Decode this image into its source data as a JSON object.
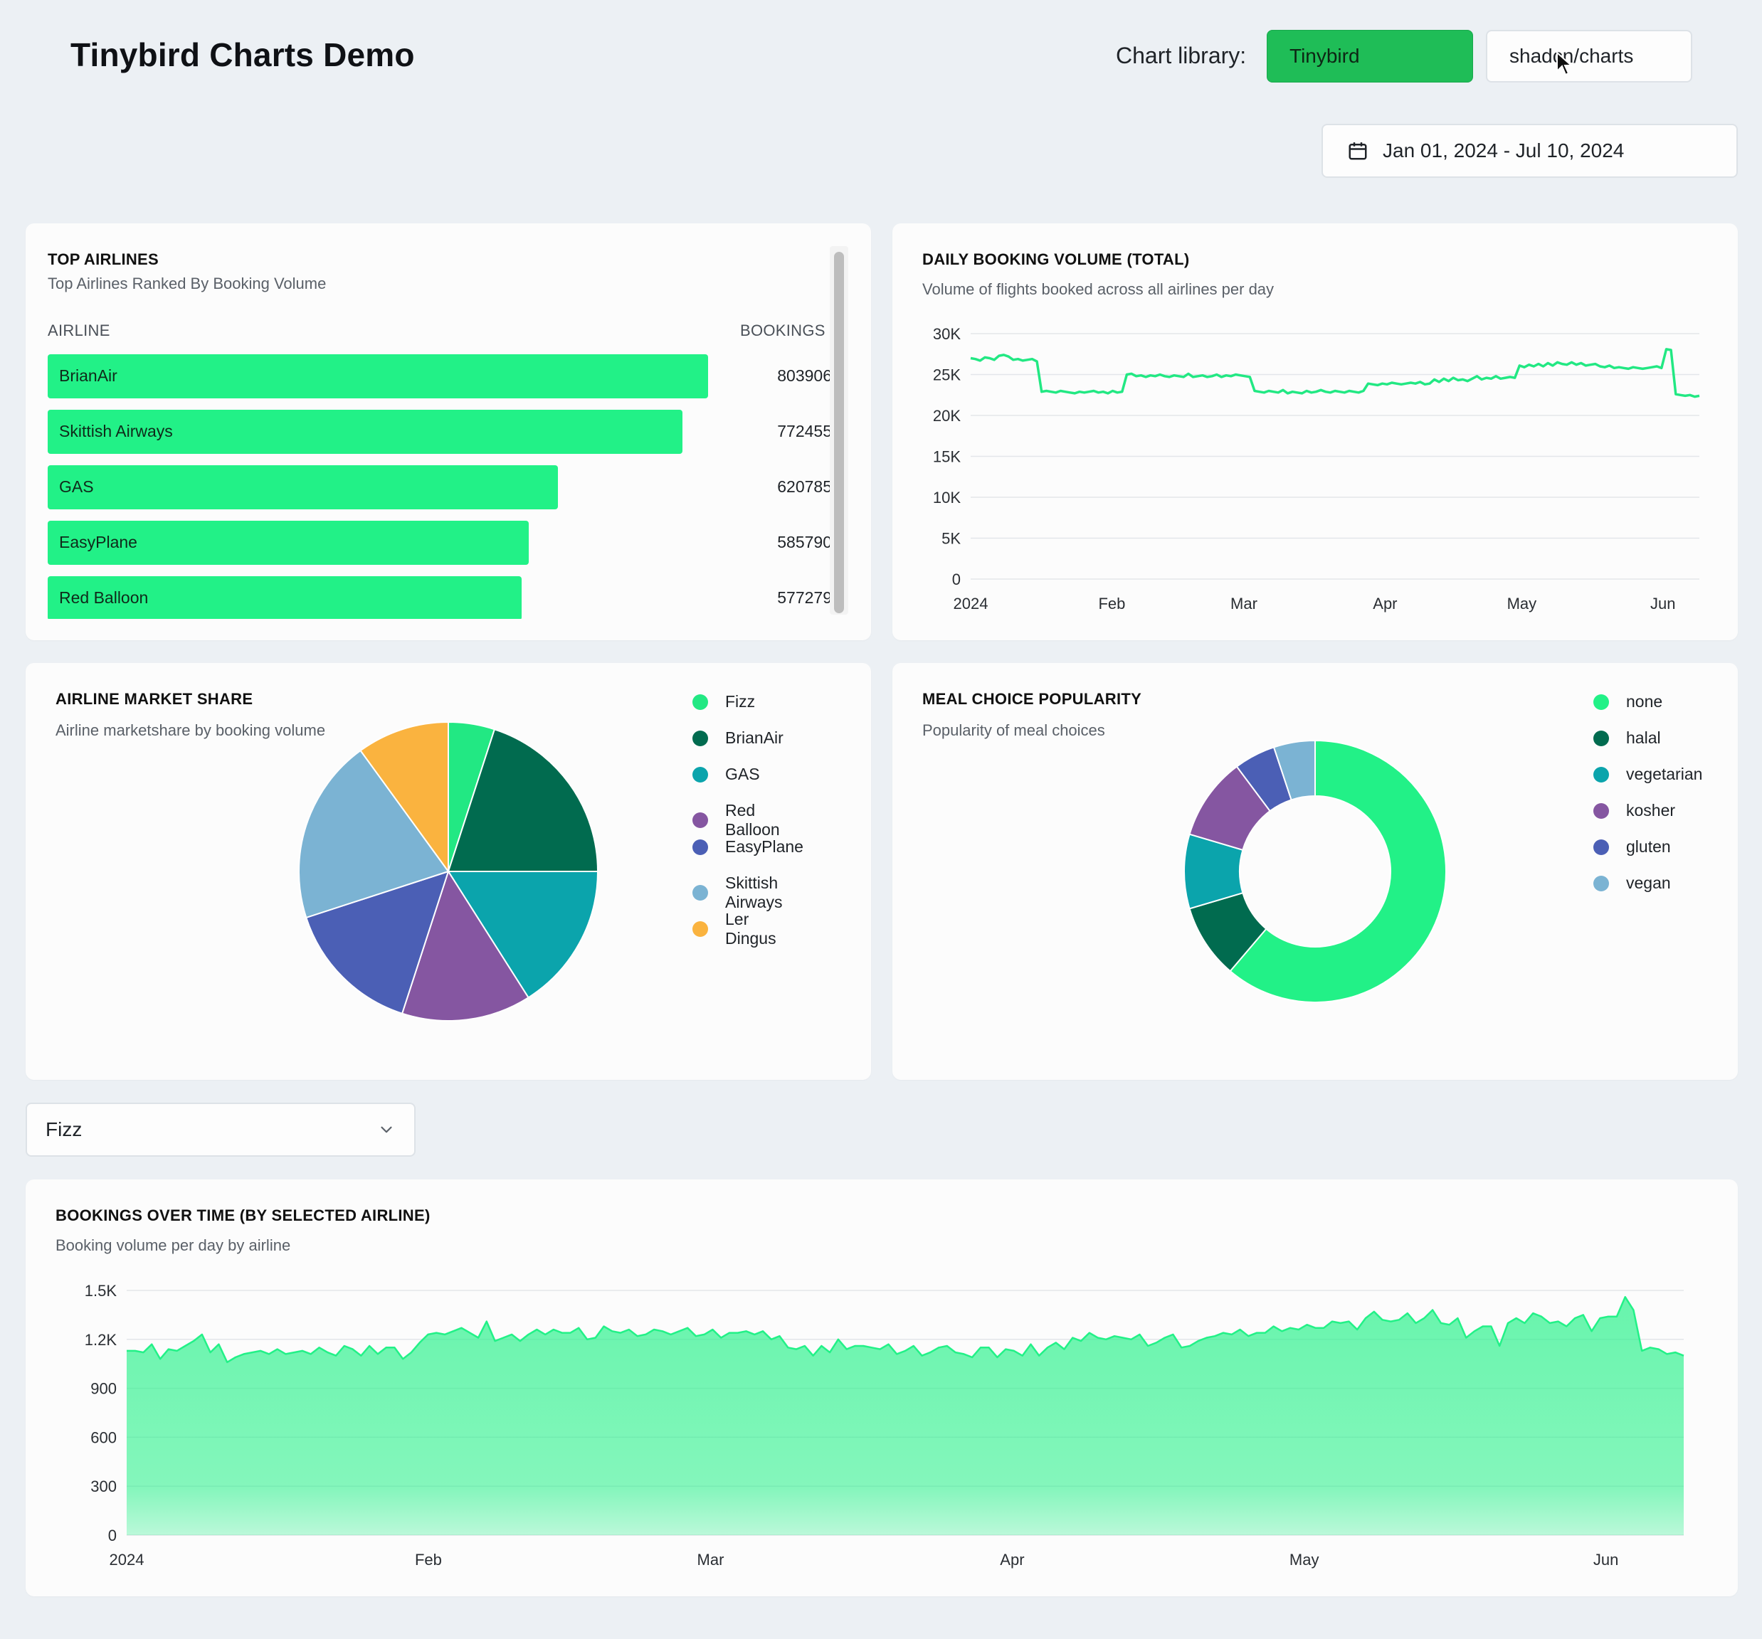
{
  "header": {
    "title": "Tinybird Charts Demo",
    "library_label": "Chart library:",
    "library_options": [
      "Tinybird",
      "shadcn/charts"
    ],
    "date_range": "Jan 01, 2024 - Jul 10, 2024"
  },
  "top_airlines": {
    "title": "TOP AIRLINES",
    "subtitle": "Top Airlines Ranked By Booking Volume",
    "col_airline": "AIRLINE",
    "col_bookings": "BOOKINGS"
  },
  "daily_booking": {
    "title": "DAILY BOOKING VOLUME (TOTAL)",
    "subtitle": "Volume of flights booked across all airlines per day"
  },
  "market_share": {
    "title": "AIRLINE MARKET SHARE",
    "subtitle": "Airline marketshare by booking volume"
  },
  "meal_choice": {
    "title": "MEAL CHOICE POPULARITY",
    "subtitle": "Popularity of meal choices"
  },
  "airline_select": {
    "value": "Fizz"
  },
  "bookings_over_time": {
    "title": "BOOKINGS OVER TIME (BY SELECTED AIRLINE)",
    "subtitle": "Booking volume per day by airline"
  },
  "colors": {
    "accent": "#22f187",
    "button_active": "#1fbd57",
    "background": "#ecf0f4"
  },
  "chart_data": [
    {
      "id": "top_airlines",
      "type": "bar",
      "orientation": "horizontal",
      "categories": [
        "BrianAir",
        "Skittish Airways",
        "GAS",
        "EasyPlane",
        "Red Balloon"
      ],
      "values": [
        803906,
        772455,
        620785,
        585790,
        577279
      ],
      "color": "#22f187"
    },
    {
      "id": "daily_booking",
      "type": "line",
      "xlabel": "",
      "ylabel": "",
      "ylim": [
        0,
        30000
      ],
      "yticks": [
        0,
        5000,
        10000,
        15000,
        20000,
        25000,
        30000
      ],
      "ytick_labels": [
        "0",
        "5K",
        "10K",
        "15K",
        "20K",
        "25K",
        "30K"
      ],
      "xtick_labels": [
        "2024",
        "Feb",
        "Mar",
        "Apr",
        "May",
        "Jun"
      ],
      "xtick_days": [
        0,
        31,
        60,
        91,
        121,
        152
      ],
      "x_day_range": [
        0,
        160
      ],
      "series": [
        {
          "name": "Total bookings",
          "color": "#22e883",
          "values": [
            27000,
            26900,
            26700,
            27100,
            27000,
            26800,
            27300,
            27400,
            27200,
            26800,
            26900,
            26700,
            26800,
            26900,
            26600,
            22900,
            23000,
            22900,
            22800,
            23000,
            22900,
            22800,
            22700,
            22900,
            22800,
            22900,
            23000,
            22800,
            22900,
            22700,
            23000,
            22800,
            22900,
            25000,
            25100,
            24800,
            24900,
            24700,
            24900,
            24800,
            25000,
            24800,
            24700,
            24900,
            24800,
            24700,
            25100,
            24700,
            24800,
            24900,
            24700,
            24800,
            25000,
            24700,
            24900,
            24800,
            25000,
            24900,
            24800,
            24700,
            23000,
            22900,
            22800,
            23000,
            22900,
            22800,
            23100,
            22700,
            22900,
            22800,
            22700,
            23000,
            22800,
            22900,
            23100,
            22900,
            22800,
            23000,
            22900,
            22800,
            23000,
            22900,
            22800,
            23000,
            23900,
            23800,
            23700,
            23900,
            23800,
            24000,
            23900,
            23800,
            23900,
            24000,
            23900,
            24100,
            23800,
            23900,
            24400,
            24100,
            24500,
            24200,
            24600,
            24300,
            24400,
            24200,
            24500,
            24800,
            24400,
            24600,
            24500,
            24800,
            24500,
            24600,
            24700,
            24600,
            26100,
            25900,
            26200,
            26000,
            26300,
            26000,
            26400,
            26100,
            26500,
            26300,
            26200,
            26500,
            26200,
            26400,
            26100,
            26200,
            26300,
            26000,
            25900,
            26100,
            25800,
            25900,
            25800,
            25700,
            25900,
            25800,
            25700,
            25800,
            25900,
            26000,
            25800,
            28100,
            28000,
            22600,
            22500,
            22400,
            22500,
            22300,
            22400
          ]
        }
      ]
    },
    {
      "id": "market_share",
      "type": "pie",
      "categories": [
        "Fizz",
        "BrianAir",
        "GAS",
        "Red Balloon",
        "EasyPlane",
        "Skittish Airways",
        "Ler Dingus"
      ],
      "values": [
        5,
        20,
        16,
        14,
        15,
        20,
        10
      ],
      "colors": [
        "#22e883",
        "#016b4f",
        "#0ba4ac",
        "#8556a1",
        "#4b5fb5",
        "#7bb3d3",
        "#fab33f"
      ]
    },
    {
      "id": "meal_choice",
      "type": "pie",
      "style": "donut",
      "categories": [
        "none",
        "halal",
        "vegetarian",
        "kosher",
        "gluten",
        "vegan"
      ],
      "values": [
        60,
        9,
        9,
        10,
        5,
        5
      ],
      "colors": [
        "#22f187",
        "#016b4f",
        "#0ba4ac",
        "#8556a1",
        "#4b5fb5",
        "#7bb3d3"
      ]
    },
    {
      "id": "bookings_over_time",
      "type": "area",
      "xlabel": "",
      "ylabel": "",
      "ylim": [
        0,
        1500
      ],
      "yticks": [
        0,
        300,
        600,
        900,
        1200,
        1500
      ],
      "ytick_labels": [
        "0",
        "300",
        "600",
        "900",
        "1.2K",
        "1.5K"
      ],
      "xtick_labels": [
        "2024",
        "Feb",
        "Mar",
        "Apr",
        "May",
        "Jun"
      ],
      "xtick_days": [
        0,
        31,
        60,
        91,
        121,
        152
      ],
      "x_day_range": [
        0,
        160
      ],
      "series": [
        {
          "name": "Fizz",
          "color": "#22f187",
          "values": [
            1130,
            1130,
            1120,
            1170,
            1080,
            1140,
            1130,
            1160,
            1190,
            1230,
            1120,
            1170,
            1060,
            1090,
            1110,
            1120,
            1130,
            1110,
            1140,
            1110,
            1120,
            1130,
            1110,
            1150,
            1120,
            1100,
            1160,
            1140,
            1100,
            1160,
            1110,
            1150,
            1150,
            1080,
            1120,
            1180,
            1230,
            1240,
            1230,
            1250,
            1270,
            1240,
            1210,
            1310,
            1190,
            1210,
            1230,
            1190,
            1230,
            1260,
            1230,
            1260,
            1240,
            1240,
            1270,
            1200,
            1210,
            1280,
            1250,
            1240,
            1260,
            1220,
            1230,
            1260,
            1250,
            1230,
            1250,
            1270,
            1220,
            1230,
            1260,
            1210,
            1240,
            1240,
            1250,
            1230,
            1250,
            1200,
            1220,
            1150,
            1140,
            1160,
            1100,
            1160,
            1120,
            1200,
            1140,
            1160,
            1160,
            1150,
            1140,
            1170,
            1110,
            1130,
            1160,
            1100,
            1120,
            1150,
            1160,
            1120,
            1110,
            1090,
            1150,
            1150,
            1090,
            1140,
            1130,
            1100,
            1170,
            1100,
            1150,
            1180,
            1140,
            1210,
            1190,
            1240,
            1210,
            1200,
            1220,
            1210,
            1200,
            1230,
            1160,
            1180,
            1210,
            1230,
            1150,
            1160,
            1190,
            1210,
            1220,
            1240,
            1230,
            1260,
            1220,
            1240,
            1240,
            1280,
            1250,
            1270,
            1260,
            1290,
            1270,
            1270,
            1310,
            1300,
            1310,
            1260,
            1330,
            1370,
            1320,
            1310,
            1320,
            1360,
            1300,
            1330,
            1380,
            1300,
            1290,
            1330,
            1210,
            1250,
            1280,
            1280,
            1160,
            1300,
            1330,
            1300,
            1360,
            1340,
            1300,
            1310,
            1280,
            1330,
            1350,
            1250,
            1330,
            1340,
            1340,
            1460,
            1380,
            1130,
            1150,
            1140,
            1110,
            1120,
            1100
          ]
        }
      ]
    }
  ]
}
